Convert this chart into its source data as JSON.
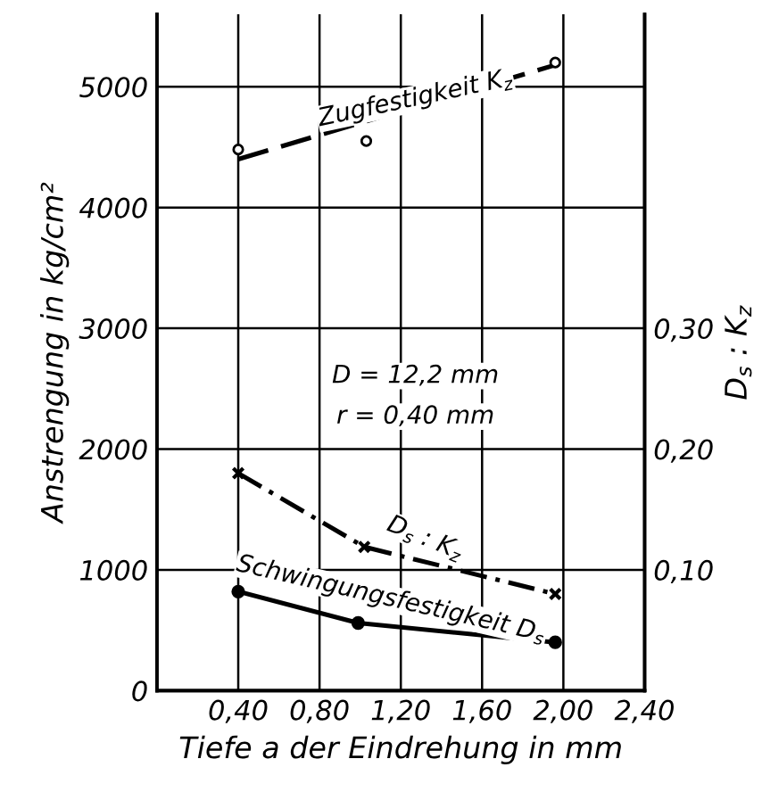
{
  "chart_data": {
    "type": "line",
    "xlabel": "Tiefe a der Eindrehung in mm",
    "ylabel": "Anstrengung in kg/cm²",
    "y2label": "D$_{s}$ : K$_{z}$",
    "xlim": [
      0,
      2.4
    ],
    "xticks": [
      {
        "value": 0.4,
        "label": "0,40"
      },
      {
        "value": 0.8,
        "label": "0,80"
      },
      {
        "value": 1.2,
        "label": "1,20"
      },
      {
        "value": 1.6,
        "label": "1,60"
      },
      {
        "value": 2.0,
        "label": "2,00"
      },
      {
        "value": 2.4,
        "label": "2,40"
      }
    ],
    "ylim": [
      0,
      5600
    ],
    "yticks": [
      0,
      1000,
      2000,
      3000,
      4000,
      5000
    ],
    "y2lim": [
      0,
      0.56
    ],
    "y2ticks": [
      {
        "value": 0.1,
        "label": "0,10"
      },
      {
        "value": 0.2,
        "label": "0,20"
      },
      {
        "value": 0.3,
        "label": "0,30"
      }
    ],
    "grid": true,
    "series": [
      {
        "type": "scatter",
        "color": "#000000",
        "marker": "circle",
        "x": [
          0.4,
          1.03,
          1.96
        ],
        "values": [
          4480,
          4550,
          5200
        ]
      },
      {
        "color": "#000000",
        "marker": "none",
        "line_style": "dashed",
        "x": [
          0.4,
          1.96
        ],
        "values": [
          4400,
          5180
        ]
      },
      {
        "color": "#000000",
        "marker": "circle",
        "line_style": "solid",
        "x": [
          0.4,
          0.99,
          1.96
        ],
        "values": [
          820,
          560,
          400
        ]
      },
      {
        "color": "#000000",
        "marker": "cross",
        "line_style": "dashdot",
        "axis": "y2",
        "x": [
          0.4,
          1.02,
          1.96
        ],
        "values": [
          0.18,
          0.119,
          0.08
        ]
      }
    ],
    "annotations": [
      "Zugfestigkeit K$_{z}$",
      "D = 12,2 mm",
      "r = 0,40 mm",
      "D$_{s}$ : K$_{z}$",
      "Schwingungsfestigkeit D$_{s}$"
    ]
  }
}
